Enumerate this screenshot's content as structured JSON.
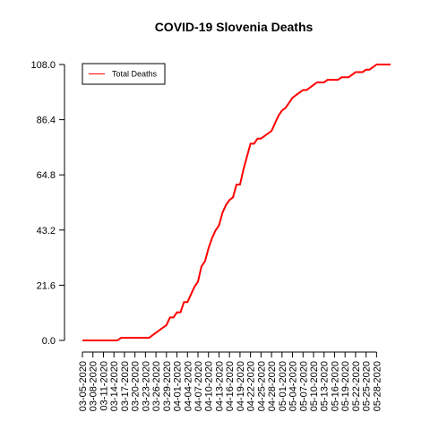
{
  "chart_data": {
    "type": "line",
    "title": "COVID-19 Slovenia Deaths",
    "xlabel": "",
    "ylabel": "",
    "y_ticks": [
      "0.0",
      "21.6",
      "43.2",
      "64.8",
      "86.4",
      "108.0"
    ],
    "ylim": [
      0,
      108
    ],
    "x_tick_labels": [
      "03-05-2020",
      "03-08-2020",
      "03-11-2020",
      "03-14-2020",
      "03-17-2020",
      "03-20-2020",
      "03-23-2020",
      "03-26-2020",
      "03-29-2020",
      "04-01-2020",
      "04-04-2020",
      "04-07-2020",
      "04-10-2020",
      "04-13-2020",
      "04-16-2020",
      "04-19-2020",
      "04-22-2020",
      "04-25-2020",
      "04-28-2020",
      "05-01-2020",
      "05-04-2020",
      "05-07-2020",
      "05-10-2020",
      "05-13-2020",
      "05-16-2020",
      "05-19-2020",
      "05-22-2020",
      "05-25-2020",
      "05-28-2020"
    ],
    "legend": {
      "position": "top-left",
      "boxed": true
    },
    "series": [
      {
        "name": "Total Deaths",
        "color": "#ff0000",
        "x_start": "03-05-2020",
        "x_end": "05-31-2020",
        "values": [
          0,
          0,
          0,
          0,
          0,
          0,
          0,
          0,
          0,
          0,
          0,
          1,
          1,
          1,
          1,
          1,
          1,
          1,
          1,
          1,
          2,
          3,
          4,
          5,
          6,
          9,
          9,
          11,
          11,
          15,
          15,
          18,
          21,
          23,
          29,
          31,
          36,
          40,
          43,
          45,
          50,
          53,
          55,
          56,
          61,
          61,
          67,
          72,
          77,
          77,
          79,
          79,
          80,
          81,
          82,
          85,
          88,
          90,
          91,
          93,
          95,
          96,
          97,
          98,
          98,
          99,
          100,
          101,
          101,
          101,
          102,
          102,
          102,
          102,
          103,
          103,
          103,
          104,
          105,
          105,
          105,
          106,
          106,
          107,
          108,
          108,
          108,
          108,
          108
        ]
      }
    ]
  }
}
